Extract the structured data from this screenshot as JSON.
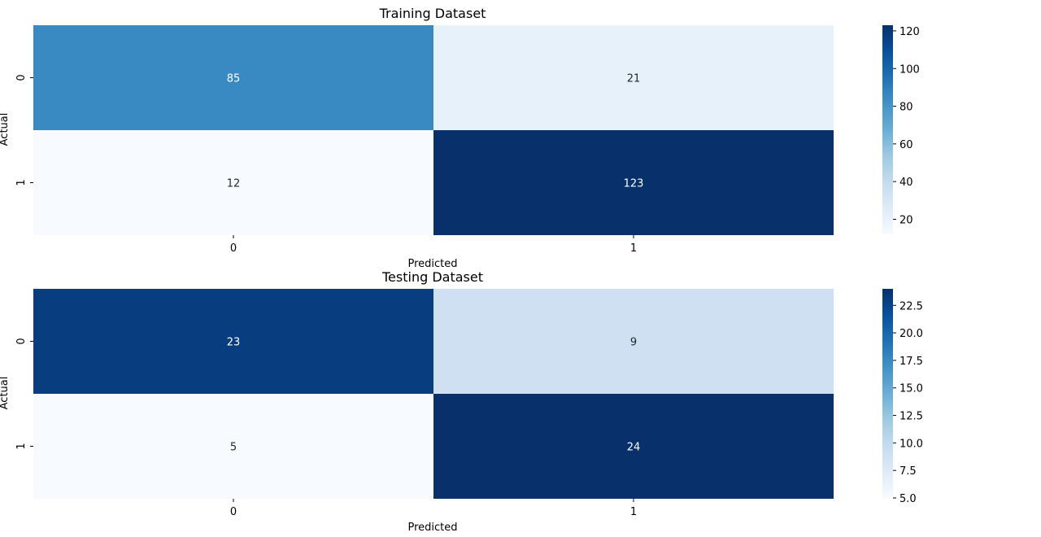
{
  "chart_data": [
    {
      "type": "heatmap",
      "title": "Training Dataset",
      "xlabel": "Predicted",
      "ylabel": "Actual",
      "x_categories": [
        "0",
        "1"
      ],
      "y_categories": [
        "0",
        "1"
      ],
      "values": [
        [
          85,
          21
        ],
        [
          12,
          123
        ]
      ],
      "colormap": "Blues",
      "color_range": [
        12,
        123
      ],
      "colorbar_ticks": [
        20,
        40,
        60,
        80,
        100,
        120
      ],
      "colorbar_tick_labels": [
        "20",
        "40",
        "60",
        "80",
        "100",
        "120"
      ]
    },
    {
      "type": "heatmap",
      "title": "Testing Dataset",
      "xlabel": "Predicted",
      "ylabel": "Actual",
      "x_categories": [
        "0",
        "1"
      ],
      "y_categories": [
        "0",
        "1"
      ],
      "values": [
        [
          23,
          9
        ],
        [
          5,
          24
        ]
      ],
      "colormap": "Blues",
      "color_range": [
        5,
        24
      ],
      "colorbar_ticks": [
        5,
        7.5,
        10,
        12.5,
        15,
        17.5,
        20,
        22.5
      ],
      "colorbar_tick_labels": [
        "5.0",
        "7.5",
        "10.0",
        "12.5",
        "15.0",
        "17.5",
        "20.0",
        "22.5"
      ]
    }
  ]
}
